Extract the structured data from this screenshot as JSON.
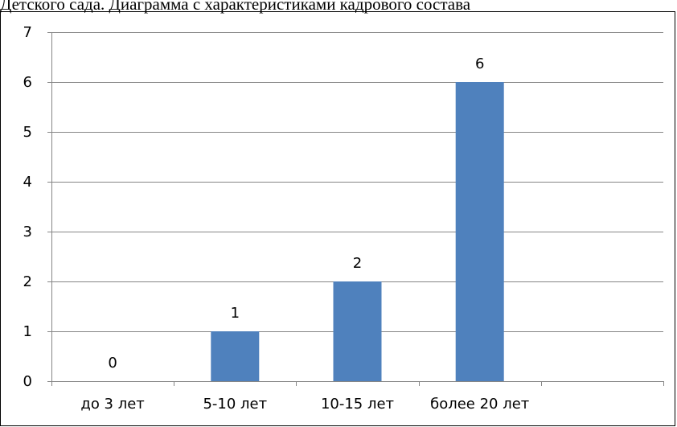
{
  "caption": "Детского сада. Диаграмма с характеристиками кадрового состава",
  "chart_data": {
    "type": "bar",
    "categories": [
      "до 3 лет",
      "5-10 лет",
      "10-15 лет",
      "более 20 лет",
      ""
    ],
    "values": [
      0,
      1,
      2,
      6,
      null
    ],
    "ylim": [
      0,
      7
    ],
    "yticks": [
      0,
      1,
      2,
      3,
      4,
      5,
      6,
      7
    ],
    "grid": true,
    "legend": "none",
    "bar_color": "#4f81bd",
    "gridline_color": "#868686",
    "axis_color": "#868686"
  }
}
